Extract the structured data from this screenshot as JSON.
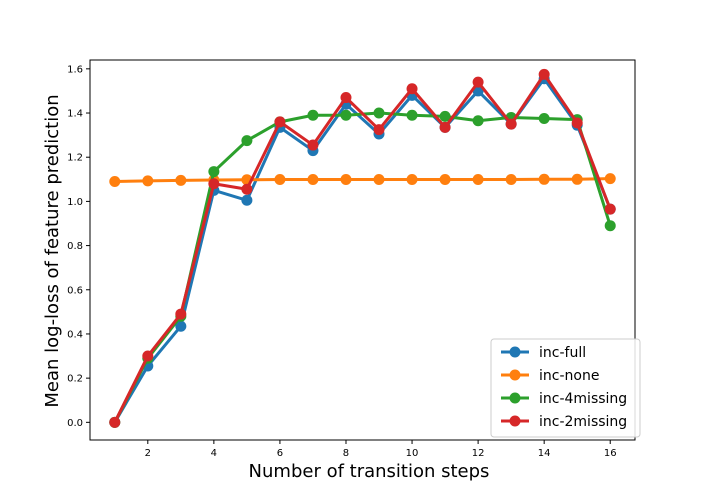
{
  "chart_data": {
    "type": "line",
    "title": "",
    "xlabel": "Number of transition steps",
    "ylabel": "Mean log-loss of feature prediction",
    "xlim": [
      0.25,
      16.75
    ],
    "ylim": [
      -0.08,
      1.64
    ],
    "x_ticks": [
      2,
      4,
      6,
      8,
      10,
      12,
      14,
      16
    ],
    "y_ticks": [
      0.0,
      0.2,
      0.4,
      0.6,
      0.8,
      1.0,
      1.2,
      1.4,
      1.6
    ],
    "grid": false,
    "legend_position": "lower-right",
    "x": [
      1,
      2,
      3,
      4,
      5,
      6,
      7,
      8,
      9,
      10,
      11,
      12,
      13,
      14,
      15,
      16
    ],
    "series": [
      {
        "name": "inc-full",
        "color": "#1f77b4",
        "values": [
          0.0,
          0.255,
          0.435,
          1.05,
          1.005,
          1.335,
          1.23,
          1.44,
          1.305,
          1.48,
          1.335,
          1.5,
          1.35,
          1.555,
          1.345,
          0.965
        ]
      },
      {
        "name": "inc-none",
        "color": "#ff7f0e",
        "values": [
          1.09,
          1.093,
          1.095,
          1.097,
          1.098,
          1.099,
          1.099,
          1.099,
          1.099,
          1.099,
          1.099,
          1.099,
          1.099,
          1.1,
          1.1,
          1.103
        ]
      },
      {
        "name": "inc-4missing",
        "color": "#2ca02c",
        "values": [
          0.0,
          0.29,
          0.48,
          1.135,
          1.275,
          1.36,
          1.39,
          1.39,
          1.4,
          1.39,
          1.385,
          1.365,
          1.38,
          1.375,
          1.37,
          0.89
        ]
      },
      {
        "name": "inc-2missing",
        "color": "#d62728",
        "values": [
          0.0,
          0.3,
          0.49,
          1.08,
          1.055,
          1.36,
          1.255,
          1.47,
          1.325,
          1.51,
          1.335,
          1.54,
          1.35,
          1.575,
          1.355,
          0.965
        ]
      }
    ]
  }
}
